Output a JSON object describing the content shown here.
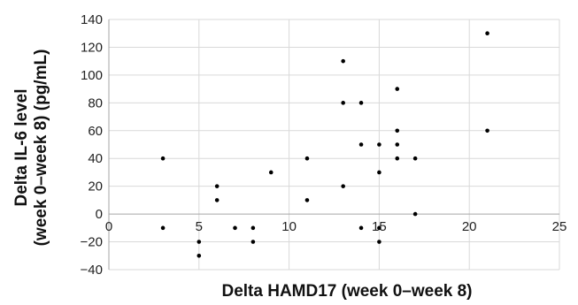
{
  "chart_data": {
    "type": "scatter",
    "title": "",
    "xlabel": "Delta HAMD17 (week 0–week 8)",
    "ylabel_line1": "Delta IL-6 level",
    "ylabel_line2": "(week 0–week 8) (pg/mL)",
    "xlim": [
      0,
      25
    ],
    "ylim": [
      -40,
      140
    ],
    "x_ticks": [
      0,
      5,
      10,
      15,
      20,
      25
    ],
    "y_ticks": [
      -40,
      -20,
      0,
      20,
      40,
      60,
      80,
      100,
      120,
      140
    ],
    "grid": true,
    "legend": false,
    "point_color": "#000000",
    "grid_color": "#d9d9d9",
    "points": [
      {
        "x": 3,
        "y": 40
      },
      {
        "x": 3,
        "y": -10
      },
      {
        "x": 5,
        "y": -20
      },
      {
        "x": 5,
        "y": -30
      },
      {
        "x": 6,
        "y": 20
      },
      {
        "x": 6,
        "y": 10
      },
      {
        "x": 7,
        "y": -10
      },
      {
        "x": 8,
        "y": -10
      },
      {
        "x": 8,
        "y": -20
      },
      {
        "x": 9,
        "y": 30
      },
      {
        "x": 11,
        "y": 40
      },
      {
        "x": 11,
        "y": 10
      },
      {
        "x": 13,
        "y": 110
      },
      {
        "x": 13,
        "y": 80
      },
      {
        "x": 13,
        "y": 20
      },
      {
        "x": 14,
        "y": 80
      },
      {
        "x": 14,
        "y": 50
      },
      {
        "x": 14,
        "y": -10
      },
      {
        "x": 15,
        "y": 50
      },
      {
        "x": 15,
        "y": 30
      },
      {
        "x": 15,
        "y": -10
      },
      {
        "x": 15,
        "y": -20
      },
      {
        "x": 16,
        "y": 90
      },
      {
        "x": 16,
        "y": 60
      },
      {
        "x": 16,
        "y": 50
      },
      {
        "x": 16,
        "y": 40
      },
      {
        "x": 17,
        "y": 40
      },
      {
        "x": 17,
        "y": 0
      },
      {
        "x": 21,
        "y": 130
      },
      {
        "x": 21,
        "y": 60
      }
    ]
  }
}
